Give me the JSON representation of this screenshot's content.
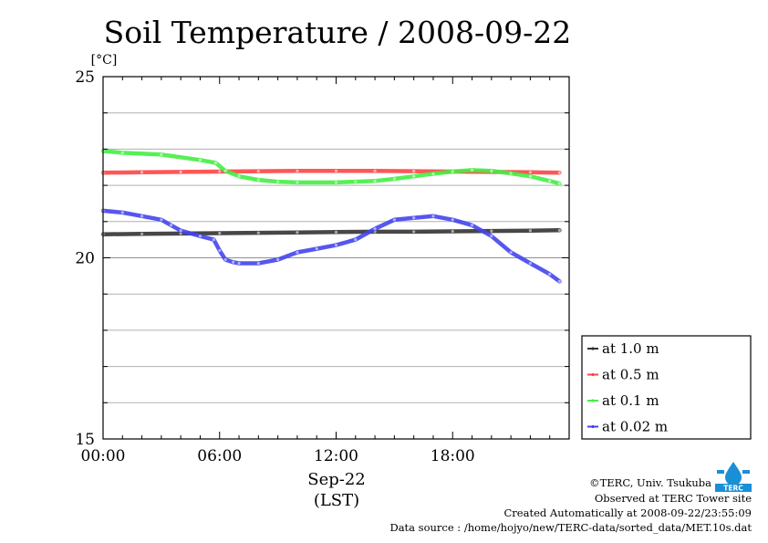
{
  "chart_data": {
    "type": "line",
    "title": "Soil Temperature / 2008-09-22",
    "unit": "[°C]",
    "xlabel_date": "Sep-22",
    "xlabel_tz": "(LST)",
    "xlim": [
      0,
      24
    ],
    "ylim": [
      15,
      25
    ],
    "x_ticks": [
      {
        "value": 0,
        "label": "00:00"
      },
      {
        "value": 6,
        "label": "06:00"
      },
      {
        "value": 12,
        "label": "12:00"
      },
      {
        "value": 18,
        "label": "18:00"
      }
    ],
    "y_ticks": [
      {
        "value": 15,
        "label": "15"
      },
      {
        "value": 20,
        "label": "20"
      },
      {
        "value": 25,
        "label": "25"
      }
    ],
    "grid": true,
    "legend_position": "right",
    "series": [
      {
        "name": "at 1.0 m",
        "color": "#333333",
        "x": [
          0,
          2,
          4,
          6,
          8,
          10,
          12,
          14,
          16,
          18,
          20,
          22,
          23.5
        ],
        "y": [
          20.65,
          20.66,
          20.67,
          20.68,
          20.69,
          20.7,
          20.71,
          20.72,
          20.72,
          20.73,
          20.74,
          20.75,
          20.76
        ]
      },
      {
        "name": "at 0.5 m",
        "color": "#ff4444",
        "x": [
          0,
          2,
          4,
          6,
          8,
          10,
          12,
          14,
          16,
          18,
          20,
          22,
          23.5
        ],
        "y": [
          22.35,
          22.36,
          22.37,
          22.38,
          22.39,
          22.4,
          22.4,
          22.4,
          22.39,
          22.38,
          22.37,
          22.36,
          22.35
        ]
      },
      {
        "name": "at 0.1 m",
        "color": "#44ee44",
        "x": [
          0,
          1,
          3,
          5,
          5.8,
          6.3,
          7,
          8,
          9,
          10,
          12,
          13,
          14,
          15,
          16,
          17,
          18,
          19,
          20,
          21,
          22,
          23,
          23.5
        ],
        "y": [
          22.95,
          22.9,
          22.85,
          22.7,
          22.62,
          22.4,
          22.25,
          22.15,
          22.1,
          22.08,
          22.08,
          22.1,
          22.12,
          22.18,
          22.25,
          22.32,
          22.38,
          22.42,
          22.4,
          22.33,
          22.25,
          22.12,
          22.05
        ]
      },
      {
        "name": "at 0.02 m",
        "color": "#4444ee",
        "x": [
          0,
          1,
          2,
          3,
          3.5,
          4,
          5,
          5.7,
          6,
          6.3,
          6.7,
          7,
          8,
          9,
          10,
          11,
          12,
          13,
          14,
          15,
          16,
          17,
          18,
          19,
          20,
          21,
          22,
          23,
          23.5
        ],
        "y": [
          21.3,
          21.25,
          21.15,
          21.05,
          20.9,
          20.75,
          20.6,
          20.5,
          20.2,
          19.95,
          19.88,
          19.85,
          19.85,
          19.95,
          20.15,
          20.25,
          20.35,
          20.5,
          20.8,
          21.05,
          21.1,
          21.15,
          21.05,
          20.9,
          20.6,
          20.15,
          19.85,
          19.55,
          19.35
        ]
      }
    ]
  },
  "footer": {
    "copyright": "©TERC, Univ. Tsukuba",
    "observed": "Observed at TERC Tower site",
    "created": "Created Automatically at 2008-09-22/23:55:09",
    "source": "Data source : /home/hojyo/new/TERC-data/sorted_data/MET.10s.dat"
  },
  "logo": {
    "text": "TERC",
    "color": "#1a8fd6"
  }
}
